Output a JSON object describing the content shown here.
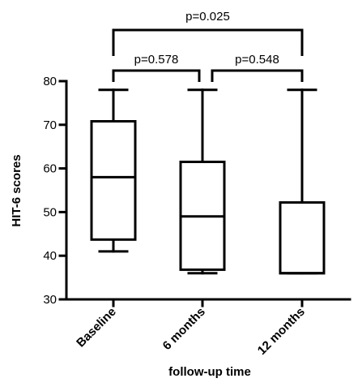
{
  "chart_data": {
    "type": "box",
    "title": "",
    "xlabel": "follow-up time",
    "ylabel": "HIT-6 scores",
    "ylim": [
      30,
      80
    ],
    "yticks": [
      30,
      40,
      50,
      60,
      70,
      80
    ],
    "grid": false,
    "categories": [
      "Baseline",
      "6 months",
      "12 months"
    ],
    "boxes": [
      {
        "category": "Baseline",
        "min": 41,
        "q1": 43.7,
        "median": 58,
        "q3": 70.8,
        "max": 78
      },
      {
        "category": "6 months",
        "min": 36,
        "q1": 36.8,
        "median": 49,
        "q3": 61.5,
        "max": 78
      },
      {
        "category": "12 months",
        "min": 36,
        "q1": 36,
        "median": 36,
        "q3": 52.2,
        "max": 78
      }
    ],
    "comparisons": [
      {
        "from": "Baseline",
        "to": "12 months",
        "label": "p=0.025"
      },
      {
        "from": "Baseline",
        "to": "6 months",
        "label": "p=0.578"
      },
      {
        "from": "6 months",
        "to": "12 months",
        "label": "p=0.548"
      }
    ]
  }
}
